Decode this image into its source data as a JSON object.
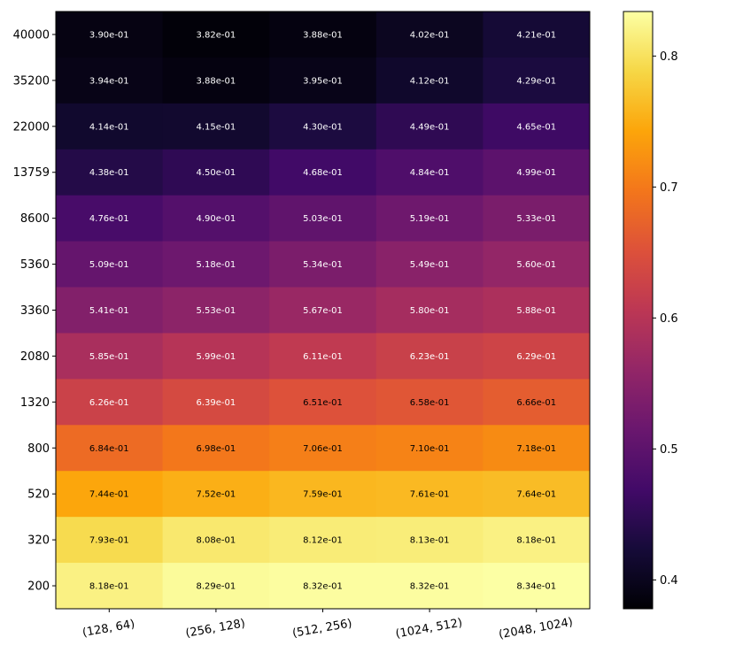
{
  "chart_data": {
    "type": "heatmap",
    "colormap": "inferno",
    "title": "",
    "xlabel": "",
    "ylabel": "",
    "x_categories": [
      "(128, 64)",
      "(256, 128)",
      "(512, 256)",
      "(1024, 512)",
      "(2048, 1024)"
    ],
    "y_categories": [
      "40000",
      "35200",
      "22000",
      "13759",
      "8600",
      "5360",
      "3360",
      "2080",
      "1320",
      "800",
      "520",
      "320",
      "200"
    ],
    "values": [
      [
        0.39,
        0.382,
        0.388,
        0.402,
        0.421
      ],
      [
        0.394,
        0.388,
        0.395,
        0.412,
        0.429
      ],
      [
        0.414,
        0.415,
        0.43,
        0.449,
        0.465
      ],
      [
        0.438,
        0.45,
        0.468,
        0.484,
        0.499
      ],
      [
        0.476,
        0.49,
        0.503,
        0.519,
        0.533
      ],
      [
        0.509,
        0.518,
        0.534,
        0.549,
        0.56
      ],
      [
        0.541,
        0.553,
        0.567,
        0.58,
        0.588
      ],
      [
        0.585,
        0.599,
        0.611,
        0.623,
        0.629
      ],
      [
        0.626,
        0.639,
        0.651,
        0.658,
        0.666
      ],
      [
        0.684,
        0.698,
        0.706,
        0.71,
        0.718
      ],
      [
        0.744,
        0.752,
        0.759,
        0.761,
        0.764
      ],
      [
        0.793,
        0.808,
        0.812,
        0.813,
        0.818
      ],
      [
        0.818,
        0.829,
        0.832,
        0.832,
        0.834
      ]
    ],
    "cell_labels": [
      [
        "3.90e-01",
        "3.82e-01",
        "3.88e-01",
        "4.02e-01",
        "4.21e-01"
      ],
      [
        "3.94e-01",
        "3.88e-01",
        "3.95e-01",
        "4.12e-01",
        "4.29e-01"
      ],
      [
        "4.14e-01",
        "4.15e-01",
        "4.30e-01",
        "4.49e-01",
        "4.65e-01"
      ],
      [
        "4.38e-01",
        "4.50e-01",
        "4.68e-01",
        "4.84e-01",
        "4.99e-01"
      ],
      [
        "4.76e-01",
        "4.90e-01",
        "5.03e-01",
        "5.19e-01",
        "5.33e-01"
      ],
      [
        "5.09e-01",
        "5.18e-01",
        "5.34e-01",
        "5.49e-01",
        "5.60e-01"
      ],
      [
        "5.41e-01",
        "5.53e-01",
        "5.67e-01",
        "5.80e-01",
        "5.88e-01"
      ],
      [
        "5.85e-01",
        "5.99e-01",
        "6.11e-01",
        "6.23e-01",
        "6.29e-01"
      ],
      [
        "6.26e-01",
        "6.39e-01",
        "6.51e-01",
        "6.58e-01",
        "6.66e-01"
      ],
      [
        "6.84e-01",
        "6.98e-01",
        "7.06e-01",
        "7.10e-01",
        "7.18e-01"
      ],
      [
        "7.44e-01",
        "7.52e-01",
        "7.59e-01",
        "7.61e-01",
        "7.64e-01"
      ],
      [
        "7.93e-01",
        "8.08e-01",
        "8.12e-01",
        "8.13e-01",
        "8.18e-01"
      ],
      [
        "8.18e-01",
        "8.29e-01",
        "8.32e-01",
        "8.32e-01",
        "8.34e-01"
      ]
    ],
    "text_color_threshold": 0.65,
    "text_colors": {
      "light": "#ffffff",
      "dark": "#000000"
    },
    "colorbar": {
      "vmin": 0.378,
      "vmax": 0.834,
      "ticks": [
        0.4,
        0.5,
        0.6,
        0.7,
        0.8
      ],
      "tick_labels": [
        "0.4",
        "0.5",
        "0.6",
        "0.7",
        "0.8"
      ]
    }
  }
}
